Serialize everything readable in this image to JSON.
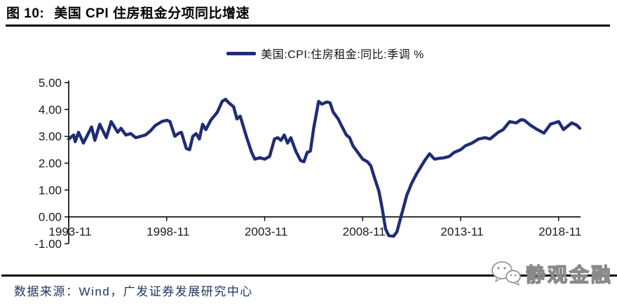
{
  "figure": {
    "label": "图 10:",
    "title": "美国 CPI 住房租金分项同比增速"
  },
  "legend": {
    "label": "美国:CPI:住房租金:同比:季调 %",
    "swatch_color": "#1F2C74"
  },
  "source": {
    "text": "数据来源：Wind，广发证券发展研究中心"
  },
  "watermark": {
    "icon": "wechat-icon",
    "text": "静观金融"
  },
  "colors": {
    "line": "#1F2C74",
    "axis": "#000000",
    "tick_label": "#1a1a1a",
    "source_text": "#1F3864"
  },
  "chart_data": {
    "type": "line",
    "title": "美国 CPI 住房租金分项同比增速",
    "unit": "%",
    "ylim": [
      -1,
      5
    ],
    "y_ticks": [
      5,
      4,
      3,
      2,
      1,
      0,
      -1
    ],
    "y_tick_format": "0.00",
    "x_ticks": [
      "1993-11",
      "1998-11",
      "2003-11",
      "2008-11",
      "2013-11",
      "2018-11"
    ],
    "grid": false,
    "legend_position": "top-center",
    "series": [
      {
        "name": "美国:CPI:住房租金:同比:季调 %",
        "points": [
          [
            "1993-11",
            2.9
          ],
          [
            "1994-02",
            3.05
          ],
          [
            "1994-03",
            2.8
          ],
          [
            "1994-05",
            3.15
          ],
          [
            "1994-08",
            2.75
          ],
          [
            "1995-01",
            3.35
          ],
          [
            "1995-03",
            2.85
          ],
          [
            "1995-06",
            3.45
          ],
          [
            "1995-10",
            2.95
          ],
          [
            "1996-01",
            3.55
          ],
          [
            "1996-05",
            3.15
          ],
          [
            "1996-07",
            3.3
          ],
          [
            "1996-10",
            3.05
          ],
          [
            "1997-01",
            3.1
          ],
          [
            "1997-04",
            2.95
          ],
          [
            "1997-07",
            3.0
          ],
          [
            "1997-10",
            3.05
          ],
          [
            "1998-01",
            3.2
          ],
          [
            "1998-04",
            3.4
          ],
          [
            "1998-08",
            3.55
          ],
          [
            "1998-11",
            3.6
          ],
          [
            "1999-01",
            3.55
          ],
          [
            "1999-04",
            3.0
          ],
          [
            "1999-06",
            3.1
          ],
          [
            "1999-08",
            3.15
          ],
          [
            "1999-11",
            2.55
          ],
          [
            "2000-01",
            2.5
          ],
          [
            "2000-03",
            3.0
          ],
          [
            "2000-05",
            3.1
          ],
          [
            "2000-07",
            2.9
          ],
          [
            "2000-09",
            3.45
          ],
          [
            "2000-11",
            3.25
          ],
          [
            "2001-02",
            3.6
          ],
          [
            "2001-06",
            3.9
          ],
          [
            "2001-09",
            4.3
          ],
          [
            "2001-11",
            4.38
          ],
          [
            "2002-01",
            4.25
          ],
          [
            "2002-04",
            4.1
          ],
          [
            "2002-06",
            3.65
          ],
          [
            "2002-08",
            3.75
          ],
          [
            "2002-12",
            2.95
          ],
          [
            "2003-03",
            2.4
          ],
          [
            "2003-05",
            2.15
          ],
          [
            "2003-08",
            2.2
          ],
          [
            "2003-11",
            2.15
          ],
          [
            "2004-02",
            2.25
          ],
          [
            "2004-05",
            2.9
          ],
          [
            "2004-07",
            2.95
          ],
          [
            "2004-09",
            2.85
          ],
          [
            "2004-11",
            3.05
          ],
          [
            "2005-01",
            2.75
          ],
          [
            "2005-03",
            2.95
          ],
          [
            "2005-06",
            2.45
          ],
          [
            "2005-09",
            2.1
          ],
          [
            "2005-11",
            2.05
          ],
          [
            "2006-01",
            2.4
          ],
          [
            "2006-03",
            2.45
          ],
          [
            "2006-05",
            3.3
          ],
          [
            "2006-08",
            4.3
          ],
          [
            "2006-10",
            4.2
          ],
          [
            "2007-01",
            4.28
          ],
          [
            "2007-03",
            4.25
          ],
          [
            "2007-05",
            3.9
          ],
          [
            "2007-08",
            3.65
          ],
          [
            "2007-10",
            3.4
          ],
          [
            "2008-01",
            3.05
          ],
          [
            "2008-03",
            2.95
          ],
          [
            "2008-05",
            2.65
          ],
          [
            "2008-08",
            2.4
          ],
          [
            "2008-11",
            2.15
          ],
          [
            "2009-02",
            2.05
          ],
          [
            "2009-04",
            1.9
          ],
          [
            "2009-06",
            1.5
          ],
          [
            "2009-09",
            0.95
          ],
          [
            "2009-11",
            0.3
          ],
          [
            "2010-01",
            -0.45
          ],
          [
            "2010-03",
            -0.7
          ],
          [
            "2010-06",
            -0.72
          ],
          [
            "2010-08",
            -0.55
          ],
          [
            "2010-10",
            -0.1
          ],
          [
            "2010-12",
            0.35
          ],
          [
            "2011-02",
            0.8
          ],
          [
            "2011-05",
            1.25
          ],
          [
            "2011-08",
            1.6
          ],
          [
            "2011-11",
            1.9
          ],
          [
            "2012-01",
            2.1
          ],
          [
            "2012-04",
            2.35
          ],
          [
            "2012-07",
            2.15
          ],
          [
            "2012-10",
            2.18
          ],
          [
            "2013-01",
            2.2
          ],
          [
            "2013-04",
            2.25
          ],
          [
            "2013-07",
            2.4
          ],
          [
            "2013-11",
            2.5
          ],
          [
            "2014-02",
            2.65
          ],
          [
            "2014-06",
            2.75
          ],
          [
            "2014-10",
            2.9
          ],
          [
            "2015-02",
            2.95
          ],
          [
            "2015-05",
            2.9
          ],
          [
            "2015-10",
            3.15
          ],
          [
            "2016-01",
            3.25
          ],
          [
            "2016-05",
            3.55
          ],
          [
            "2016-09",
            3.5
          ],
          [
            "2016-12",
            3.62
          ],
          [
            "2017-02",
            3.6
          ],
          [
            "2017-06",
            3.4
          ],
          [
            "2017-10",
            3.25
          ],
          [
            "2018-02",
            3.12
          ],
          [
            "2018-06",
            3.45
          ],
          [
            "2018-11",
            3.55
          ],
          [
            "2019-02",
            3.25
          ],
          [
            "2019-07",
            3.5
          ],
          [
            "2019-10",
            3.42
          ],
          [
            "2019-12",
            3.3
          ]
        ]
      }
    ]
  }
}
